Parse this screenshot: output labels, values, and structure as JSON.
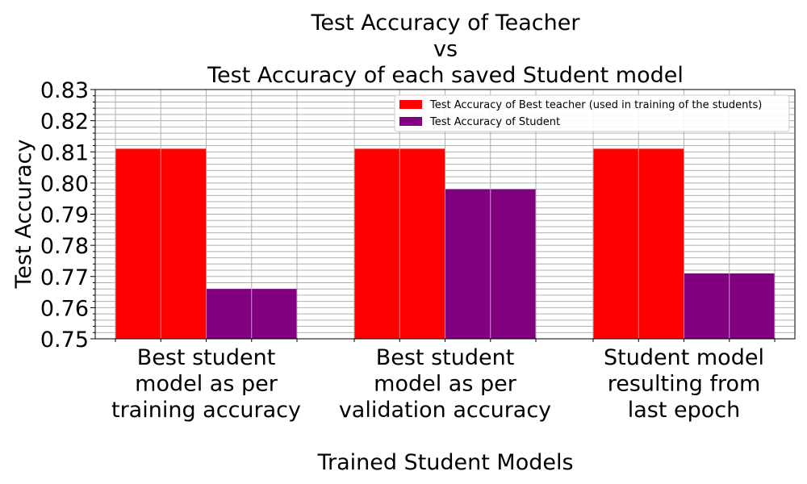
{
  "chart_data": {
    "type": "bar",
    "title_lines": [
      "Test Accuracy of Teacher",
      "vs",
      "Test Accuracy of each saved Student model"
    ],
    "xlabel": "Trained Student Models",
    "ylabel": "Test Accuracy",
    "categories": [
      [
        "Best student",
        "model as per",
        "training accuracy"
      ],
      [
        "Best student",
        "model as per",
        "validation accuracy"
      ],
      [
        "Student model",
        "resulting from",
        "last epoch"
      ]
    ],
    "series": [
      {
        "name": "Test Accuracy of Best teacher (used in training of the students)",
        "color": "#ff0000",
        "values": [
          0.811,
          0.811,
          0.811
        ]
      },
      {
        "name": "Test Accuracy of Student",
        "color": "#800080",
        "values": [
          0.766,
          0.798,
          0.771
        ]
      }
    ],
    "ylim": [
      0.75,
      0.83
    ],
    "yticks": [
      "0.75",
      "0.76",
      "0.77",
      "0.78",
      "0.79",
      "0.80",
      "0.81",
      "0.82",
      "0.83"
    ],
    "grid": true,
    "legend_position": "upper right"
  }
}
